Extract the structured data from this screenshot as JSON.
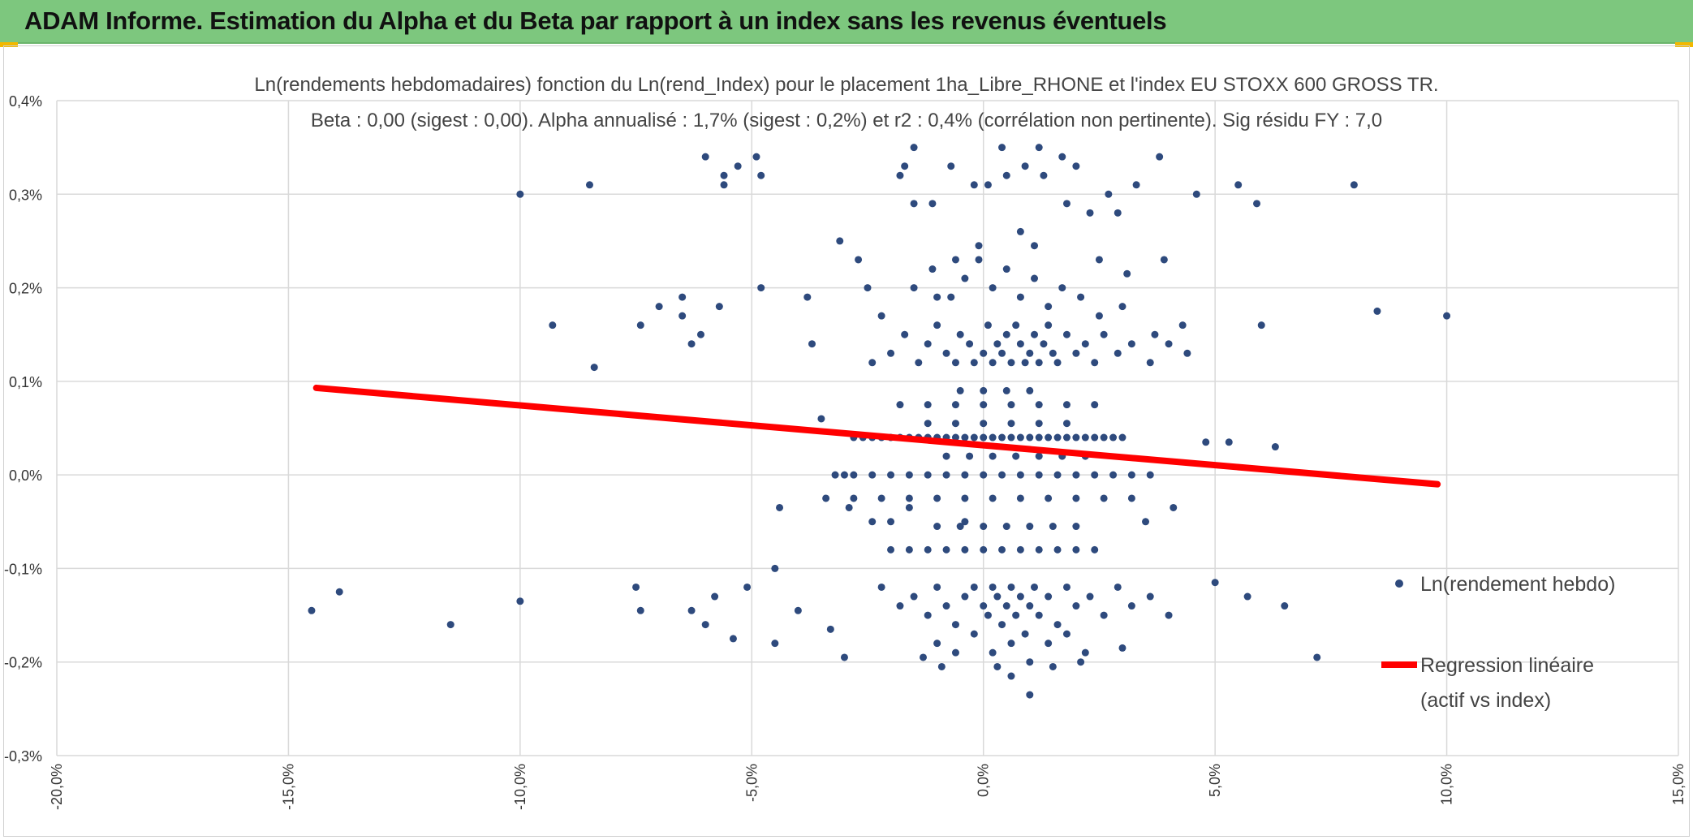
{
  "header": {
    "title": "ADAM Informe. Estimation du Alpha et du Beta par rapport à un index sans les revenus éventuels",
    "bg_color": "#7dc77e"
  },
  "chart_data": {
    "type": "scatter",
    "title": "Ln(rendements hebdomadaires) fonction du Ln(rend_Index) pour le placement 1ha_Libre_RHONE et l'index EU STOXX 600 GROSS TR.",
    "subtitle": "Beta : 0,00 (sigest : 0,00). Alpha annualisé : 1,7% (sigest : 0,2%) et r2 : 0,4% (corrélation non pertinente). Sig résidu FY : 7,0",
    "xlabel": "",
    "ylabel": "",
    "xlim": [
      -20,
      15
    ],
    "ylim": [
      -0.3,
      0.4
    ],
    "x_ticks": [
      -20,
      -15,
      -10,
      -5,
      0,
      5,
      10,
      15
    ],
    "x_tick_labels": [
      "-20,0%",
      "-15,0%",
      "-10,0%",
      "-5,0%",
      "0,0%",
      "5,0%",
      "10,0%",
      "15,0%"
    ],
    "y_ticks": [
      -0.3,
      -0.2,
      -0.1,
      0.0,
      0.1,
      0.2,
      0.3,
      0.4
    ],
    "y_tick_labels": [
      "-0,3%",
      "-0,2%",
      "-0,1%",
      "0,0%",
      "0,1%",
      "0,2%",
      "0,3%",
      "0,4%"
    ],
    "grid": true,
    "legend_position": "right",
    "series": [
      {
        "name": "Ln(rendement hebdo)",
        "kind": "scatter",
        "color": "#2e4a7d",
        "points": [
          [
            -14.5,
            -0.145
          ],
          [
            -13.9,
            -0.125
          ],
          [
            -11.5,
            -0.16
          ],
          [
            -10.0,
            -0.135
          ],
          [
            -10.0,
            0.3
          ],
          [
            -9.3,
            0.16
          ],
          [
            -8.5,
            0.31
          ],
          [
            -8.4,
            0.115
          ],
          [
            -7.5,
            -0.12
          ],
          [
            -7.4,
            -0.145
          ],
          [
            -7.4,
            0.16
          ],
          [
            -7.0,
            0.18
          ],
          [
            -6.5,
            0.19
          ],
          [
            -6.5,
            0.17
          ],
          [
            -6.3,
            -0.145
          ],
          [
            -6.3,
            0.14
          ],
          [
            -6.1,
            0.15
          ],
          [
            -6.0,
            0.34
          ],
          [
            -6.0,
            -0.16
          ],
          [
            -5.8,
            -0.13
          ],
          [
            -5.7,
            0.18
          ],
          [
            -5.6,
            0.32
          ],
          [
            -5.6,
            0.31
          ],
          [
            -5.4,
            -0.175
          ],
          [
            -5.3,
            0.33
          ],
          [
            -5.1,
            -0.12
          ],
          [
            -4.9,
            0.34
          ],
          [
            -4.8,
            0.32
          ],
          [
            -4.8,
            0.2
          ],
          [
            -4.5,
            -0.1
          ],
          [
            -4.5,
            -0.18
          ],
          [
            -4.4,
            -0.035
          ],
          [
            -4.0,
            -0.145
          ],
          [
            -3.8,
            0.19
          ],
          [
            -3.7,
            0.14
          ],
          [
            -3.5,
            0.06
          ],
          [
            -3.3,
            -0.165
          ],
          [
            -3.1,
            0.25
          ],
          [
            -3.0,
            -0.195
          ],
          [
            -2.9,
            -0.035
          ],
          [
            -2.7,
            0.23
          ],
          [
            -2.5,
            0.2
          ],
          [
            -2.4,
            -0.05
          ],
          [
            -2.2,
            0.17
          ],
          [
            -2.0,
            -0.05
          ],
          [
            -1.8,
            0.32
          ],
          [
            -1.7,
            0.33
          ],
          [
            -1.6,
            -0.035
          ],
          [
            -1.5,
            0.35
          ],
          [
            -1.5,
            0.29
          ],
          [
            -1.3,
            -0.195
          ],
          [
            -1.1,
            0.29
          ],
          [
            -1.0,
            0.19
          ],
          [
            -0.9,
            -0.205
          ],
          [
            -0.7,
            0.33
          ],
          [
            -0.6,
            0.23
          ],
          [
            -0.4,
            -0.05
          ],
          [
            -0.2,
            0.31
          ],
          [
            -0.1,
            0.245
          ],
          [
            0.1,
            0.31
          ],
          [
            0.3,
            -0.205
          ],
          [
            0.4,
            0.35
          ],
          [
            0.5,
            0.32
          ],
          [
            0.6,
            -0.215
          ],
          [
            0.8,
            0.26
          ],
          [
            0.9,
            0.33
          ],
          [
            1.0,
            -0.235
          ],
          [
            1.1,
            0.245
          ],
          [
            1.2,
            0.35
          ],
          [
            1.3,
            0.32
          ],
          [
            1.5,
            -0.205
          ],
          [
            1.7,
            0.34
          ],
          [
            1.8,
            0.29
          ],
          [
            2.0,
            0.33
          ],
          [
            2.1,
            -0.2
          ],
          [
            2.3,
            0.28
          ],
          [
            2.5,
            0.23
          ],
          [
            2.7,
            0.3
          ],
          [
            2.9,
            0.28
          ],
          [
            3.0,
            -0.185
          ],
          [
            3.1,
            0.215
          ],
          [
            3.3,
            0.31
          ],
          [
            3.5,
            -0.05
          ],
          [
            3.7,
            0.15
          ],
          [
            3.8,
            0.34
          ],
          [
            3.9,
            0.23
          ],
          [
            4.1,
            -0.035
          ],
          [
            4.3,
            0.16
          ],
          [
            4.6,
            0.3
          ],
          [
            4.8,
            0.035
          ],
          [
            5.0,
            -0.115
          ],
          [
            5.3,
            0.035
          ],
          [
            5.5,
            0.31
          ],
          [
            5.7,
            -0.13
          ],
          [
            5.9,
            0.29
          ],
          [
            6.0,
            0.16
          ],
          [
            6.3,
            0.03
          ],
          [
            6.5,
            -0.14
          ],
          [
            7.2,
            -0.195
          ],
          [
            8.0,
            0.31
          ],
          [
            8.5,
            0.175
          ],
          [
            10.0,
            0.17
          ],
          [
            -2.8,
            0.04
          ],
          [
            -2.6,
            0.04
          ],
          [
            -2.4,
            0.04
          ],
          [
            -2.2,
            0.04
          ],
          [
            -2.0,
            0.04
          ],
          [
            -1.8,
            0.04
          ],
          [
            -1.6,
            0.04
          ],
          [
            -1.4,
            0.04
          ],
          [
            -1.2,
            0.04
          ],
          [
            -1.0,
            0.04
          ],
          [
            -0.8,
            0.04
          ],
          [
            -0.6,
            0.04
          ],
          [
            -0.4,
            0.04
          ],
          [
            -0.2,
            0.04
          ],
          [
            0.0,
            0.04
          ],
          [
            0.2,
            0.04
          ],
          [
            0.4,
            0.04
          ],
          [
            0.6,
            0.04
          ],
          [
            0.8,
            0.04
          ],
          [
            1.0,
            0.04
          ],
          [
            1.2,
            0.04
          ],
          [
            1.4,
            0.04
          ],
          [
            1.6,
            0.04
          ],
          [
            1.8,
            0.04
          ],
          [
            2.0,
            0.04
          ],
          [
            2.2,
            0.04
          ],
          [
            2.4,
            0.04
          ],
          [
            2.6,
            0.04
          ],
          [
            2.8,
            0.04
          ],
          [
            3.0,
            0.04
          ],
          [
            -3.2,
            0.0
          ],
          [
            -3.0,
            0.0
          ],
          [
            -2.8,
            0.0
          ],
          [
            -2.4,
            0.0
          ],
          [
            -2.0,
            0.0
          ],
          [
            -1.6,
            0.0
          ],
          [
            -1.2,
            0.0
          ],
          [
            -0.8,
            0.0
          ],
          [
            -0.4,
            0.0
          ],
          [
            0.0,
            0.0
          ],
          [
            0.4,
            0.0
          ],
          [
            0.8,
            0.0
          ],
          [
            1.2,
            0.0
          ],
          [
            1.6,
            0.0
          ],
          [
            2.0,
            0.0
          ],
          [
            2.4,
            0.0
          ],
          [
            2.8,
            0.0
          ],
          [
            3.2,
            0.0
          ],
          [
            3.6,
            0.0
          ],
          [
            -3.4,
            -0.025
          ],
          [
            -2.8,
            -0.025
          ],
          [
            -2.2,
            -0.025
          ],
          [
            -1.6,
            -0.025
          ],
          [
            -1.0,
            -0.025
          ],
          [
            -0.4,
            -0.025
          ],
          [
            0.2,
            -0.025
          ],
          [
            0.8,
            -0.025
          ],
          [
            1.4,
            -0.025
          ],
          [
            2.0,
            -0.025
          ],
          [
            2.6,
            -0.025
          ],
          [
            3.2,
            -0.025
          ],
          [
            -1.8,
            0.075
          ],
          [
            -1.2,
            0.075
          ],
          [
            -0.6,
            0.075
          ],
          [
            0.0,
            0.075
          ],
          [
            0.6,
            0.075
          ],
          [
            1.2,
            0.075
          ],
          [
            1.8,
            0.075
          ],
          [
            2.4,
            0.075
          ],
          [
            -1.2,
            0.055
          ],
          [
            -0.6,
            0.055
          ],
          [
            0.0,
            0.055
          ],
          [
            0.6,
            0.055
          ],
          [
            1.2,
            0.055
          ],
          [
            1.8,
            0.055
          ],
          [
            -1.0,
            -0.055
          ],
          [
            -0.5,
            -0.055
          ],
          [
            0.0,
            -0.055
          ],
          [
            0.5,
            -0.055
          ],
          [
            1.0,
            -0.055
          ],
          [
            1.5,
            -0.055
          ],
          [
            2.0,
            -0.055
          ],
          [
            -2.0,
            -0.08
          ],
          [
            -1.6,
            -0.08
          ],
          [
            -1.2,
            -0.08
          ],
          [
            -0.8,
            -0.08
          ],
          [
            -0.4,
            -0.08
          ],
          [
            0.0,
            -0.08
          ],
          [
            0.4,
            -0.08
          ],
          [
            0.8,
            -0.08
          ],
          [
            1.2,
            -0.08
          ],
          [
            1.6,
            -0.08
          ],
          [
            2.0,
            -0.08
          ],
          [
            2.4,
            -0.08
          ],
          [
            -0.8,
            0.02
          ],
          [
            -0.3,
            0.02
          ],
          [
            0.2,
            0.02
          ],
          [
            0.7,
            0.02
          ],
          [
            1.2,
            0.02
          ],
          [
            1.7,
            0.02
          ],
          [
            2.2,
            0.02
          ],
          [
            -0.5,
            0.09
          ],
          [
            0.0,
            0.09
          ],
          [
            0.5,
            0.09
          ],
          [
            1.0,
            0.09
          ],
          [
            -2.4,
            0.12
          ],
          [
            -2.0,
            0.13
          ],
          [
            -1.7,
            0.15
          ],
          [
            -1.4,
            0.12
          ],
          [
            -1.2,
            0.14
          ],
          [
            -1.0,
            0.16
          ],
          [
            -0.8,
            0.13
          ],
          [
            -0.6,
            0.12
          ],
          [
            -0.5,
            0.15
          ],
          [
            -0.3,
            0.14
          ],
          [
            -0.2,
            0.12
          ],
          [
            0.0,
            0.13
          ],
          [
            0.1,
            0.16
          ],
          [
            0.2,
            0.12
          ],
          [
            0.3,
            0.14
          ],
          [
            0.4,
            0.13
          ],
          [
            0.5,
            0.15
          ],
          [
            0.6,
            0.12
          ],
          [
            0.7,
            0.16
          ],
          [
            0.8,
            0.14
          ],
          [
            0.9,
            0.12
          ],
          [
            1.0,
            0.13
          ],
          [
            1.1,
            0.15
          ],
          [
            1.2,
            0.12
          ],
          [
            1.3,
            0.14
          ],
          [
            1.4,
            0.16
          ],
          [
            1.5,
            0.13
          ],
          [
            1.6,
            0.12
          ],
          [
            1.8,
            0.15
          ],
          [
            2.0,
            0.13
          ],
          [
            2.2,
            0.14
          ],
          [
            2.4,
            0.12
          ],
          [
            2.6,
            0.15
          ],
          [
            2.9,
            0.13
          ],
          [
            3.2,
            0.14
          ],
          [
            3.6,
            0.12
          ],
          [
            4.0,
            0.14
          ],
          [
            4.4,
            0.13
          ],
          [
            -1.5,
            0.2
          ],
          [
            -1.1,
            0.22
          ],
          [
            -0.7,
            0.19
          ],
          [
            -0.4,
            0.21
          ],
          [
            -0.1,
            0.23
          ],
          [
            0.2,
            0.2
          ],
          [
            0.5,
            0.22
          ],
          [
            0.8,
            0.19
          ],
          [
            1.1,
            0.21
          ],
          [
            1.4,
            0.18
          ],
          [
            1.7,
            0.2
          ],
          [
            2.1,
            0.19
          ],
          [
            2.5,
            0.17
          ],
          [
            3.0,
            0.18
          ],
          [
            -2.2,
            -0.12
          ],
          [
            -1.8,
            -0.14
          ],
          [
            -1.5,
            -0.13
          ],
          [
            -1.2,
            -0.15
          ],
          [
            -1.0,
            -0.12
          ],
          [
            -0.8,
            -0.14
          ],
          [
            -0.6,
            -0.16
          ],
          [
            -0.4,
            -0.13
          ],
          [
            -0.2,
            -0.12
          ],
          [
            0.0,
            -0.14
          ],
          [
            0.1,
            -0.15
          ],
          [
            0.2,
            -0.12
          ],
          [
            0.3,
            -0.13
          ],
          [
            0.4,
            -0.16
          ],
          [
            0.5,
            -0.14
          ],
          [
            0.6,
            -0.12
          ],
          [
            0.7,
            -0.15
          ],
          [
            0.8,
            -0.13
          ],
          [
            0.9,
            -0.17
          ],
          [
            1.0,
            -0.14
          ],
          [
            1.1,
            -0.12
          ],
          [
            1.2,
            -0.15
          ],
          [
            1.4,
            -0.13
          ],
          [
            1.6,
            -0.16
          ],
          [
            1.8,
            -0.12
          ],
          [
            2.0,
            -0.14
          ],
          [
            2.3,
            -0.13
          ],
          [
            2.6,
            -0.15
          ],
          [
            2.9,
            -0.12
          ],
          [
            3.2,
            -0.14
          ],
          [
            3.6,
            -0.13
          ],
          [
            4.0,
            -0.15
          ],
          [
            -1.0,
            -0.18
          ],
          [
            -0.6,
            -0.19
          ],
          [
            -0.2,
            -0.17
          ],
          [
            0.2,
            -0.19
          ],
          [
            0.6,
            -0.18
          ],
          [
            1.0,
            -0.2
          ],
          [
            1.4,
            -0.18
          ],
          [
            1.8,
            -0.17
          ],
          [
            2.2,
            -0.19
          ]
        ]
      },
      {
        "name": "Regression linéaire\n(actif vs index)",
        "kind": "line",
        "color": "#ff0000",
        "points": [
          [
            -14.4,
            0.093
          ],
          [
            9.8,
            -0.01
          ]
        ]
      }
    ],
    "legend": [
      {
        "label_line1": "Ln(rendement hebdo)",
        "label_line2": ""
      },
      {
        "label_line1": "Regression linéaire",
        "label_line2": "(actif vs index)"
      }
    ]
  }
}
